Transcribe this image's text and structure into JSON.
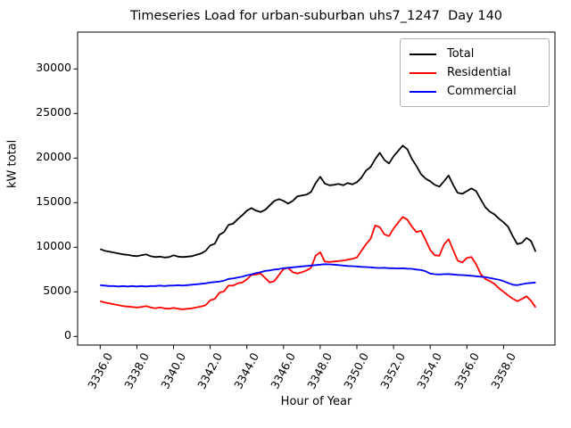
{
  "figure": {
    "background": "#ffffff"
  },
  "chart_data": {
    "type": "line",
    "title": "Timeseries Load for urban-suburban uhs7_1247  Day 140",
    "xlabel": "Hour of Year",
    "ylabel": "kW total",
    "grid": false,
    "legend": {
      "position": "upper right"
    },
    "xlim": [
      3334.8,
      3360.8
    ],
    "ylim": [
      -1000,
      34100
    ],
    "xticks": {
      "values": [
        3336,
        3338,
        3340,
        3342,
        3344,
        3346,
        3348,
        3350,
        3352,
        3354,
        3356,
        3358
      ],
      "labels": [
        "3336.0",
        "3338.0",
        "3340.0",
        "3342.0",
        "3344.0",
        "3346.0",
        "3348.0",
        "3350.0",
        "3352.0",
        "3354.0",
        "3356.0",
        "3358.0"
      ]
    },
    "yticks": {
      "values": [
        0,
        5000,
        10000,
        15000,
        20000,
        25000,
        30000
      ],
      "labels": [
        "0",
        "5000",
        "10000",
        "15000",
        "20000",
        "25000",
        "30000"
      ]
    },
    "x_start": 3336.0,
    "x_step": 0.25,
    "x": [
      3336.0,
      3336.25,
      3336.5,
      3336.75,
      3337.0,
      3337.25,
      3337.5,
      3337.75,
      3338.0,
      3338.25,
      3338.5,
      3338.75,
      3339.0,
      3339.25,
      3339.5,
      3339.75,
      3340.0,
      3340.25,
      3340.5,
      3340.75,
      3341.0,
      3341.25,
      3341.5,
      3341.75,
      3342.0,
      3342.25,
      3342.5,
      3342.75,
      3343.0,
      3343.25,
      3343.5,
      3343.75,
      3344.0,
      3344.25,
      3344.5,
      3344.75,
      3345.0,
      3345.25,
      3345.5,
      3345.75,
      3346.0,
      3346.25,
      3346.5,
      3346.75,
      3347.0,
      3347.25,
      3347.5,
      3347.75,
      3348.0,
      3348.25,
      3348.5,
      3348.75,
      3349.0,
      3349.25,
      3349.5,
      3349.75,
      3350.0,
      3350.25,
      3350.5,
      3350.75,
      3351.0,
      3351.25,
      3351.5,
      3351.75,
      3352.0,
      3352.25,
      3352.5,
      3352.75,
      3353.0,
      3353.25,
      3353.5,
      3353.75,
      3354.0,
      3354.25,
      3354.5,
      3354.75,
      3355.0,
      3355.25,
      3355.5,
      3355.75,
      3356.0,
      3356.25,
      3356.5,
      3356.75,
      3357.0,
      3357.25,
      3357.5,
      3357.75,
      3358.0,
      3358.25,
      3358.5,
      3358.75,
      3359.0,
      3359.25,
      3359.5,
      3359.75
    ],
    "series": [
      {
        "name": "Total",
        "color": "#000000",
        "values": [
          9800,
          9600,
          9500,
          9400,
          9300,
          9200,
          9150,
          9050,
          9000,
          9100,
          9200,
          9000,
          8900,
          8950,
          8850,
          8900,
          9100,
          8950,
          8900,
          8950,
          9000,
          9150,
          9300,
          9600,
          10200,
          10400,
          11400,
          11700,
          12500,
          12650,
          13150,
          13600,
          14100,
          14400,
          14100,
          13950,
          14200,
          14700,
          15200,
          15400,
          15200,
          14900,
          15200,
          15700,
          15800,
          15900,
          16200,
          17200,
          17900,
          17150,
          16950,
          17000,
          17100,
          16950,
          17200,
          17050,
          17300,
          17800,
          18600,
          19000,
          19900,
          20600,
          19800,
          19400,
          20200,
          20800,
          21400,
          21000,
          19900,
          19100,
          18200,
          17700,
          17400,
          17000,
          16800,
          17400,
          18050,
          17000,
          16100,
          16000,
          16300,
          16600,
          16300,
          15400,
          14500,
          14000,
          13700,
          13200,
          12800,
          12300,
          11250,
          10350,
          10500,
          11050,
          10700,
          9500
        ]
      },
      {
        "name": "Residential",
        "color": "#ff0000",
        "values": [
          3950,
          3800,
          3700,
          3600,
          3500,
          3400,
          3350,
          3300,
          3250,
          3300,
          3400,
          3250,
          3150,
          3250,
          3150,
          3100,
          3200,
          3100,
          3050,
          3100,
          3150,
          3250,
          3350,
          3500,
          4050,
          4200,
          4900,
          5050,
          5700,
          5700,
          5950,
          6050,
          6400,
          6900,
          6950,
          7050,
          6550,
          6050,
          6200,
          6900,
          7550,
          7700,
          7200,
          7050,
          7200,
          7400,
          7700,
          9050,
          9450,
          8400,
          8350,
          8400,
          8450,
          8500,
          8600,
          8700,
          8850,
          9600,
          10350,
          10950,
          12450,
          12250,
          11450,
          11250,
          12100,
          12750,
          13400,
          13100,
          12300,
          11700,
          11850,
          10800,
          9700,
          9100,
          9050,
          10300,
          10900,
          9700,
          8500,
          8300,
          8800,
          8900,
          8100,
          7000,
          6450,
          6200,
          5900,
          5400,
          5000,
          4600,
          4230,
          3950,
          4200,
          4500,
          4000,
          3250
        ]
      },
      {
        "name": "Commercial",
        "color": "#0000ff",
        "values": [
          5750,
          5700,
          5650,
          5650,
          5600,
          5650,
          5600,
          5650,
          5600,
          5650,
          5600,
          5650,
          5650,
          5700,
          5650,
          5700,
          5700,
          5750,
          5700,
          5750,
          5800,
          5850,
          5900,
          5950,
          6050,
          6100,
          6150,
          6250,
          6450,
          6500,
          6600,
          6700,
          6850,
          6950,
          7100,
          7200,
          7350,
          7400,
          7500,
          7550,
          7650,
          7700,
          7750,
          7800,
          7850,
          7900,
          7950,
          8000,
          8050,
          8100,
          8080,
          8050,
          8000,
          7950,
          7900,
          7880,
          7850,
          7800,
          7780,
          7750,
          7700,
          7680,
          7700,
          7650,
          7650,
          7620,
          7650,
          7600,
          7580,
          7500,
          7450,
          7300,
          7050,
          6980,
          6950,
          6980,
          7000,
          6950,
          6900,
          6880,
          6850,
          6800,
          6750,
          6700,
          6650,
          6550,
          6450,
          6350,
          6200,
          6000,
          5800,
          5750,
          5850,
          5950,
          6000,
          6050
        ]
      }
    ]
  }
}
